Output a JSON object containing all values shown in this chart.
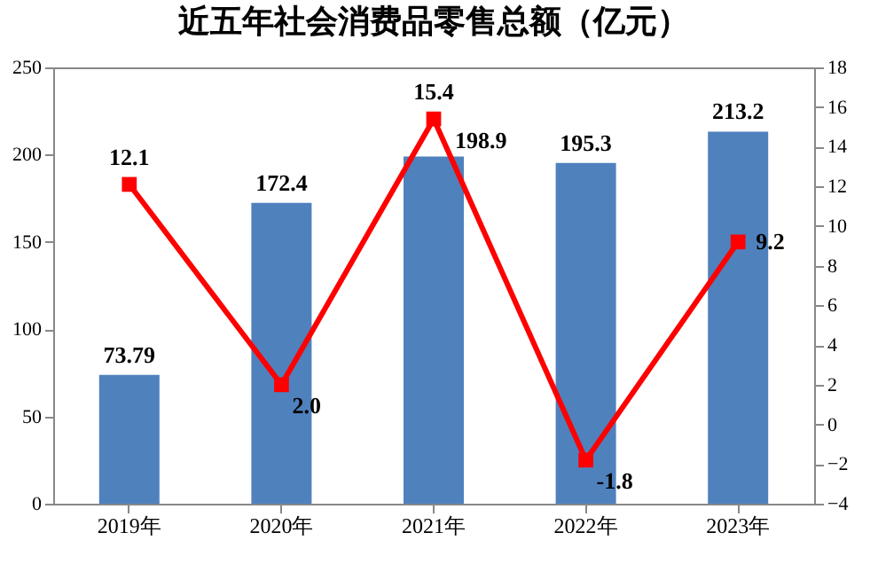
{
  "chart_data": {
    "type": "bar",
    "title": "近五年社会消费品零售总额（亿元）",
    "categories": [
      "2019年",
      "2020年",
      "2021年",
      "2022年",
      "2023年"
    ],
    "series": [
      {
        "color": "#4f81bd",
        "values": [
          73.79,
          172.4,
          198.9,
          195.3,
          213.2
        ],
        "value_labels": [
          "73.79",
          "172.4",
          "198.9",
          "195.3",
          "213.2"
        ]
      },
      {
        "type": "line",
        "axis": "y2",
        "color": "#ff0000",
        "values": [
          12.1,
          2.0,
          15.4,
          -1.8,
          9.2
        ],
        "value_labels": [
          "12.1",
          "2.0",
          "15.4",
          "-1.8",
          "9.2"
        ]
      }
    ],
    "ylim": [
      0,
      250
    ],
    "yticks": [
      0,
      50,
      100,
      150,
      200,
      250
    ],
    "y2lim": [
      -4,
      18
    ],
    "y2ticks": [
      -4,
      -2,
      0,
      2,
      4,
      6,
      8,
      10,
      12,
      14,
      16,
      18
    ],
    "marker": "square",
    "grid": false
  }
}
